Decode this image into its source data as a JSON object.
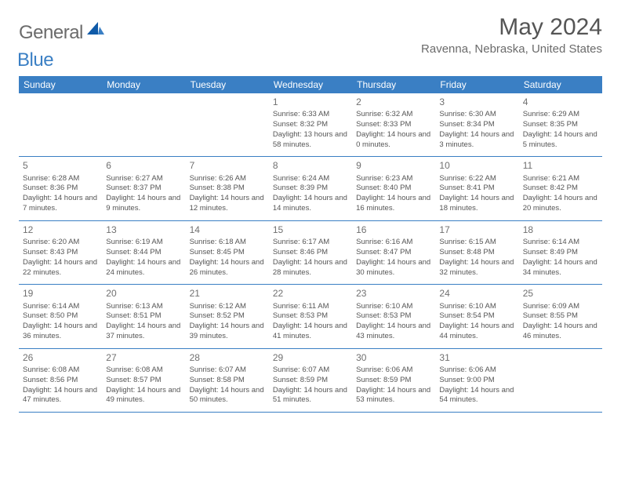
{
  "brand": {
    "part1": "General",
    "part2": "Blue",
    "logo_color": "#3a7fc4"
  },
  "title": "May 2024",
  "location": "Ravenna, Nebraska, United States",
  "header_bg": "#3a7fc4",
  "header_fg": "#ffffff",
  "weekdays": [
    "Sunday",
    "Monday",
    "Tuesday",
    "Wednesday",
    "Thursday",
    "Friday",
    "Saturday"
  ],
  "weeks": [
    [
      null,
      null,
      null,
      {
        "d": "1",
        "sr": "6:33 AM",
        "ss": "8:32 PM",
        "dl": "13 hours and 58 minutes."
      },
      {
        "d": "2",
        "sr": "6:32 AM",
        "ss": "8:33 PM",
        "dl": "14 hours and 0 minutes."
      },
      {
        "d": "3",
        "sr": "6:30 AM",
        "ss": "8:34 PM",
        "dl": "14 hours and 3 minutes."
      },
      {
        "d": "4",
        "sr": "6:29 AM",
        "ss": "8:35 PM",
        "dl": "14 hours and 5 minutes."
      }
    ],
    [
      {
        "d": "5",
        "sr": "6:28 AM",
        "ss": "8:36 PM",
        "dl": "14 hours and 7 minutes."
      },
      {
        "d": "6",
        "sr": "6:27 AM",
        "ss": "8:37 PM",
        "dl": "14 hours and 9 minutes."
      },
      {
        "d": "7",
        "sr": "6:26 AM",
        "ss": "8:38 PM",
        "dl": "14 hours and 12 minutes."
      },
      {
        "d": "8",
        "sr": "6:24 AM",
        "ss": "8:39 PM",
        "dl": "14 hours and 14 minutes."
      },
      {
        "d": "9",
        "sr": "6:23 AM",
        "ss": "8:40 PM",
        "dl": "14 hours and 16 minutes."
      },
      {
        "d": "10",
        "sr": "6:22 AM",
        "ss": "8:41 PM",
        "dl": "14 hours and 18 minutes."
      },
      {
        "d": "11",
        "sr": "6:21 AM",
        "ss": "8:42 PM",
        "dl": "14 hours and 20 minutes."
      }
    ],
    [
      {
        "d": "12",
        "sr": "6:20 AM",
        "ss": "8:43 PM",
        "dl": "14 hours and 22 minutes."
      },
      {
        "d": "13",
        "sr": "6:19 AM",
        "ss": "8:44 PM",
        "dl": "14 hours and 24 minutes."
      },
      {
        "d": "14",
        "sr": "6:18 AM",
        "ss": "8:45 PM",
        "dl": "14 hours and 26 minutes."
      },
      {
        "d": "15",
        "sr": "6:17 AM",
        "ss": "8:46 PM",
        "dl": "14 hours and 28 minutes."
      },
      {
        "d": "16",
        "sr": "6:16 AM",
        "ss": "8:47 PM",
        "dl": "14 hours and 30 minutes."
      },
      {
        "d": "17",
        "sr": "6:15 AM",
        "ss": "8:48 PM",
        "dl": "14 hours and 32 minutes."
      },
      {
        "d": "18",
        "sr": "6:14 AM",
        "ss": "8:49 PM",
        "dl": "14 hours and 34 minutes."
      }
    ],
    [
      {
        "d": "19",
        "sr": "6:14 AM",
        "ss": "8:50 PM",
        "dl": "14 hours and 36 minutes."
      },
      {
        "d": "20",
        "sr": "6:13 AM",
        "ss": "8:51 PM",
        "dl": "14 hours and 37 minutes."
      },
      {
        "d": "21",
        "sr": "6:12 AM",
        "ss": "8:52 PM",
        "dl": "14 hours and 39 minutes."
      },
      {
        "d": "22",
        "sr": "6:11 AM",
        "ss": "8:53 PM",
        "dl": "14 hours and 41 minutes."
      },
      {
        "d": "23",
        "sr": "6:10 AM",
        "ss": "8:53 PM",
        "dl": "14 hours and 43 minutes."
      },
      {
        "d": "24",
        "sr": "6:10 AM",
        "ss": "8:54 PM",
        "dl": "14 hours and 44 minutes."
      },
      {
        "d": "25",
        "sr": "6:09 AM",
        "ss": "8:55 PM",
        "dl": "14 hours and 46 minutes."
      }
    ],
    [
      {
        "d": "26",
        "sr": "6:08 AM",
        "ss": "8:56 PM",
        "dl": "14 hours and 47 minutes."
      },
      {
        "d": "27",
        "sr": "6:08 AM",
        "ss": "8:57 PM",
        "dl": "14 hours and 49 minutes."
      },
      {
        "d": "28",
        "sr": "6:07 AM",
        "ss": "8:58 PM",
        "dl": "14 hours and 50 minutes."
      },
      {
        "d": "29",
        "sr": "6:07 AM",
        "ss": "8:59 PM",
        "dl": "14 hours and 51 minutes."
      },
      {
        "d": "30",
        "sr": "6:06 AM",
        "ss": "8:59 PM",
        "dl": "14 hours and 53 minutes."
      },
      {
        "d": "31",
        "sr": "6:06 AM",
        "ss": "9:00 PM",
        "dl": "14 hours and 54 minutes."
      },
      null
    ]
  ],
  "labels": {
    "sunrise": "Sunrise:",
    "sunset": "Sunset:",
    "daylight": "Daylight:"
  }
}
